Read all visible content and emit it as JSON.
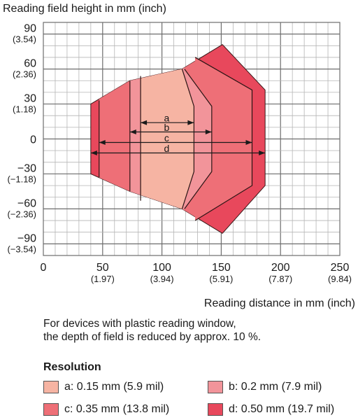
{
  "chart_data": {
    "type": "area",
    "ylabel": "Reading field height in mm (inch)",
    "xlabel": "Reading distance in mm (inch)",
    "xlim": [
      0,
      250
    ],
    "ylim": [
      -100,
      100
    ],
    "grid": true,
    "x_ticks": [
      {
        "value": 0,
        "label": "0",
        "sub": ""
      },
      {
        "value": 50,
        "label": "50",
        "sub": "(1.97)"
      },
      {
        "value": 100,
        "label": "100",
        "sub": "(3.94)"
      },
      {
        "value": 150,
        "label": "150",
        "sub": "(5.91)"
      },
      {
        "value": 200,
        "label": "200",
        "sub": "(7.87)"
      },
      {
        "value": 250,
        "label": "250",
        "sub": "(9.84)"
      }
    ],
    "y_ticks": [
      {
        "value": 90,
        "label": "90",
        "sub": "(3.54)"
      },
      {
        "value": 60,
        "label": "60",
        "sub": "(2.36)"
      },
      {
        "value": 30,
        "label": "30",
        "sub": "(1.18)"
      },
      {
        "value": 0,
        "label": "0",
        "sub": ""
      },
      {
        "value": -30,
        "label": "−30",
        "sub": "(−1.18)"
      },
      {
        "value": -60,
        "label": "−60",
        "sub": "(−2.36)"
      },
      {
        "value": -90,
        "label": "−90",
        "sub": "(−3.54)"
      }
    ],
    "fields": [
      {
        "key": "d",
        "color": "#e8485c",
        "x_range": [
          40,
          187
        ],
        "polygon": [
          [
            40,
            30
          ],
          [
            73,
            50
          ],
          [
            117,
            60
          ],
          [
            151,
            81
          ],
          [
            187,
            42
          ],
          [
            187,
            -40
          ],
          [
            151,
            -81
          ],
          [
            117,
            -60
          ],
          [
            73,
            -45
          ],
          [
            40,
            -30
          ]
        ]
      },
      {
        "key": "c",
        "color": "#ee6f77",
        "x_range": [
          47,
          176
        ],
        "boundaries": [
          [
            [
              47,
              33
            ],
            [
              47,
              -33
            ]
          ],
          [
            [
              128,
              70
            ],
            [
              176,
              42
            ],
            [
              176,
              -40
            ],
            [
              128,
              -70
            ]
          ]
        ]
      },
      {
        "key": "b",
        "color": "#f2949a",
        "x_range": [
          73,
          142
        ],
        "boundaries": [
          [
            [
              73,
              50
            ],
            [
              73,
              -45
            ]
          ],
          [
            [
              119,
              60
            ],
            [
              142,
              28
            ],
            [
              142,
              -28
            ],
            [
              119,
              -60
            ]
          ]
        ]
      },
      {
        "key": "a",
        "color": "#f6b4a3",
        "x_range": [
          82,
          127
        ],
        "boundaries": [
          [
            [
              82,
              54
            ],
            [
              82,
              -53
            ]
          ],
          [
            [
              117,
              60
            ],
            [
              127,
              28
            ],
            [
              127,
              -28
            ],
            [
              117,
              -60
            ]
          ]
        ]
      }
    ],
    "dimension_lines": [
      {
        "key": "a",
        "label": "a",
        "y": 14,
        "x_range": [
          82,
          127
        ]
      },
      {
        "key": "b",
        "label": "b",
        "y": 6,
        "x_range": [
          73,
          142
        ]
      },
      {
        "key": "c",
        "label": "c",
        "y": -3,
        "x_range": [
          47,
          176
        ]
      },
      {
        "key": "d",
        "label": "d",
        "y": -12,
        "x_range": [
          40,
          187
        ]
      }
    ]
  },
  "note": {
    "line1": "For devices with plastic reading window,",
    "line2": "the depth of field is reduced by approx. 10 %."
  },
  "legend": {
    "title": "Resolution",
    "items": [
      {
        "key": "a",
        "label": "a: 0.15 mm (5.9 mil)",
        "color": "#f6b4a3"
      },
      {
        "key": "b",
        "label": "b: 0.2 mm (7.9 mil)",
        "color": "#f2949a"
      },
      {
        "key": "c",
        "label": "c: 0.35 mm (13.8 mil)",
        "color": "#ee6f77"
      },
      {
        "key": "d",
        "label": "d: 0.50 mm (19.7 mil)",
        "color": "#e8485c"
      }
    ]
  }
}
